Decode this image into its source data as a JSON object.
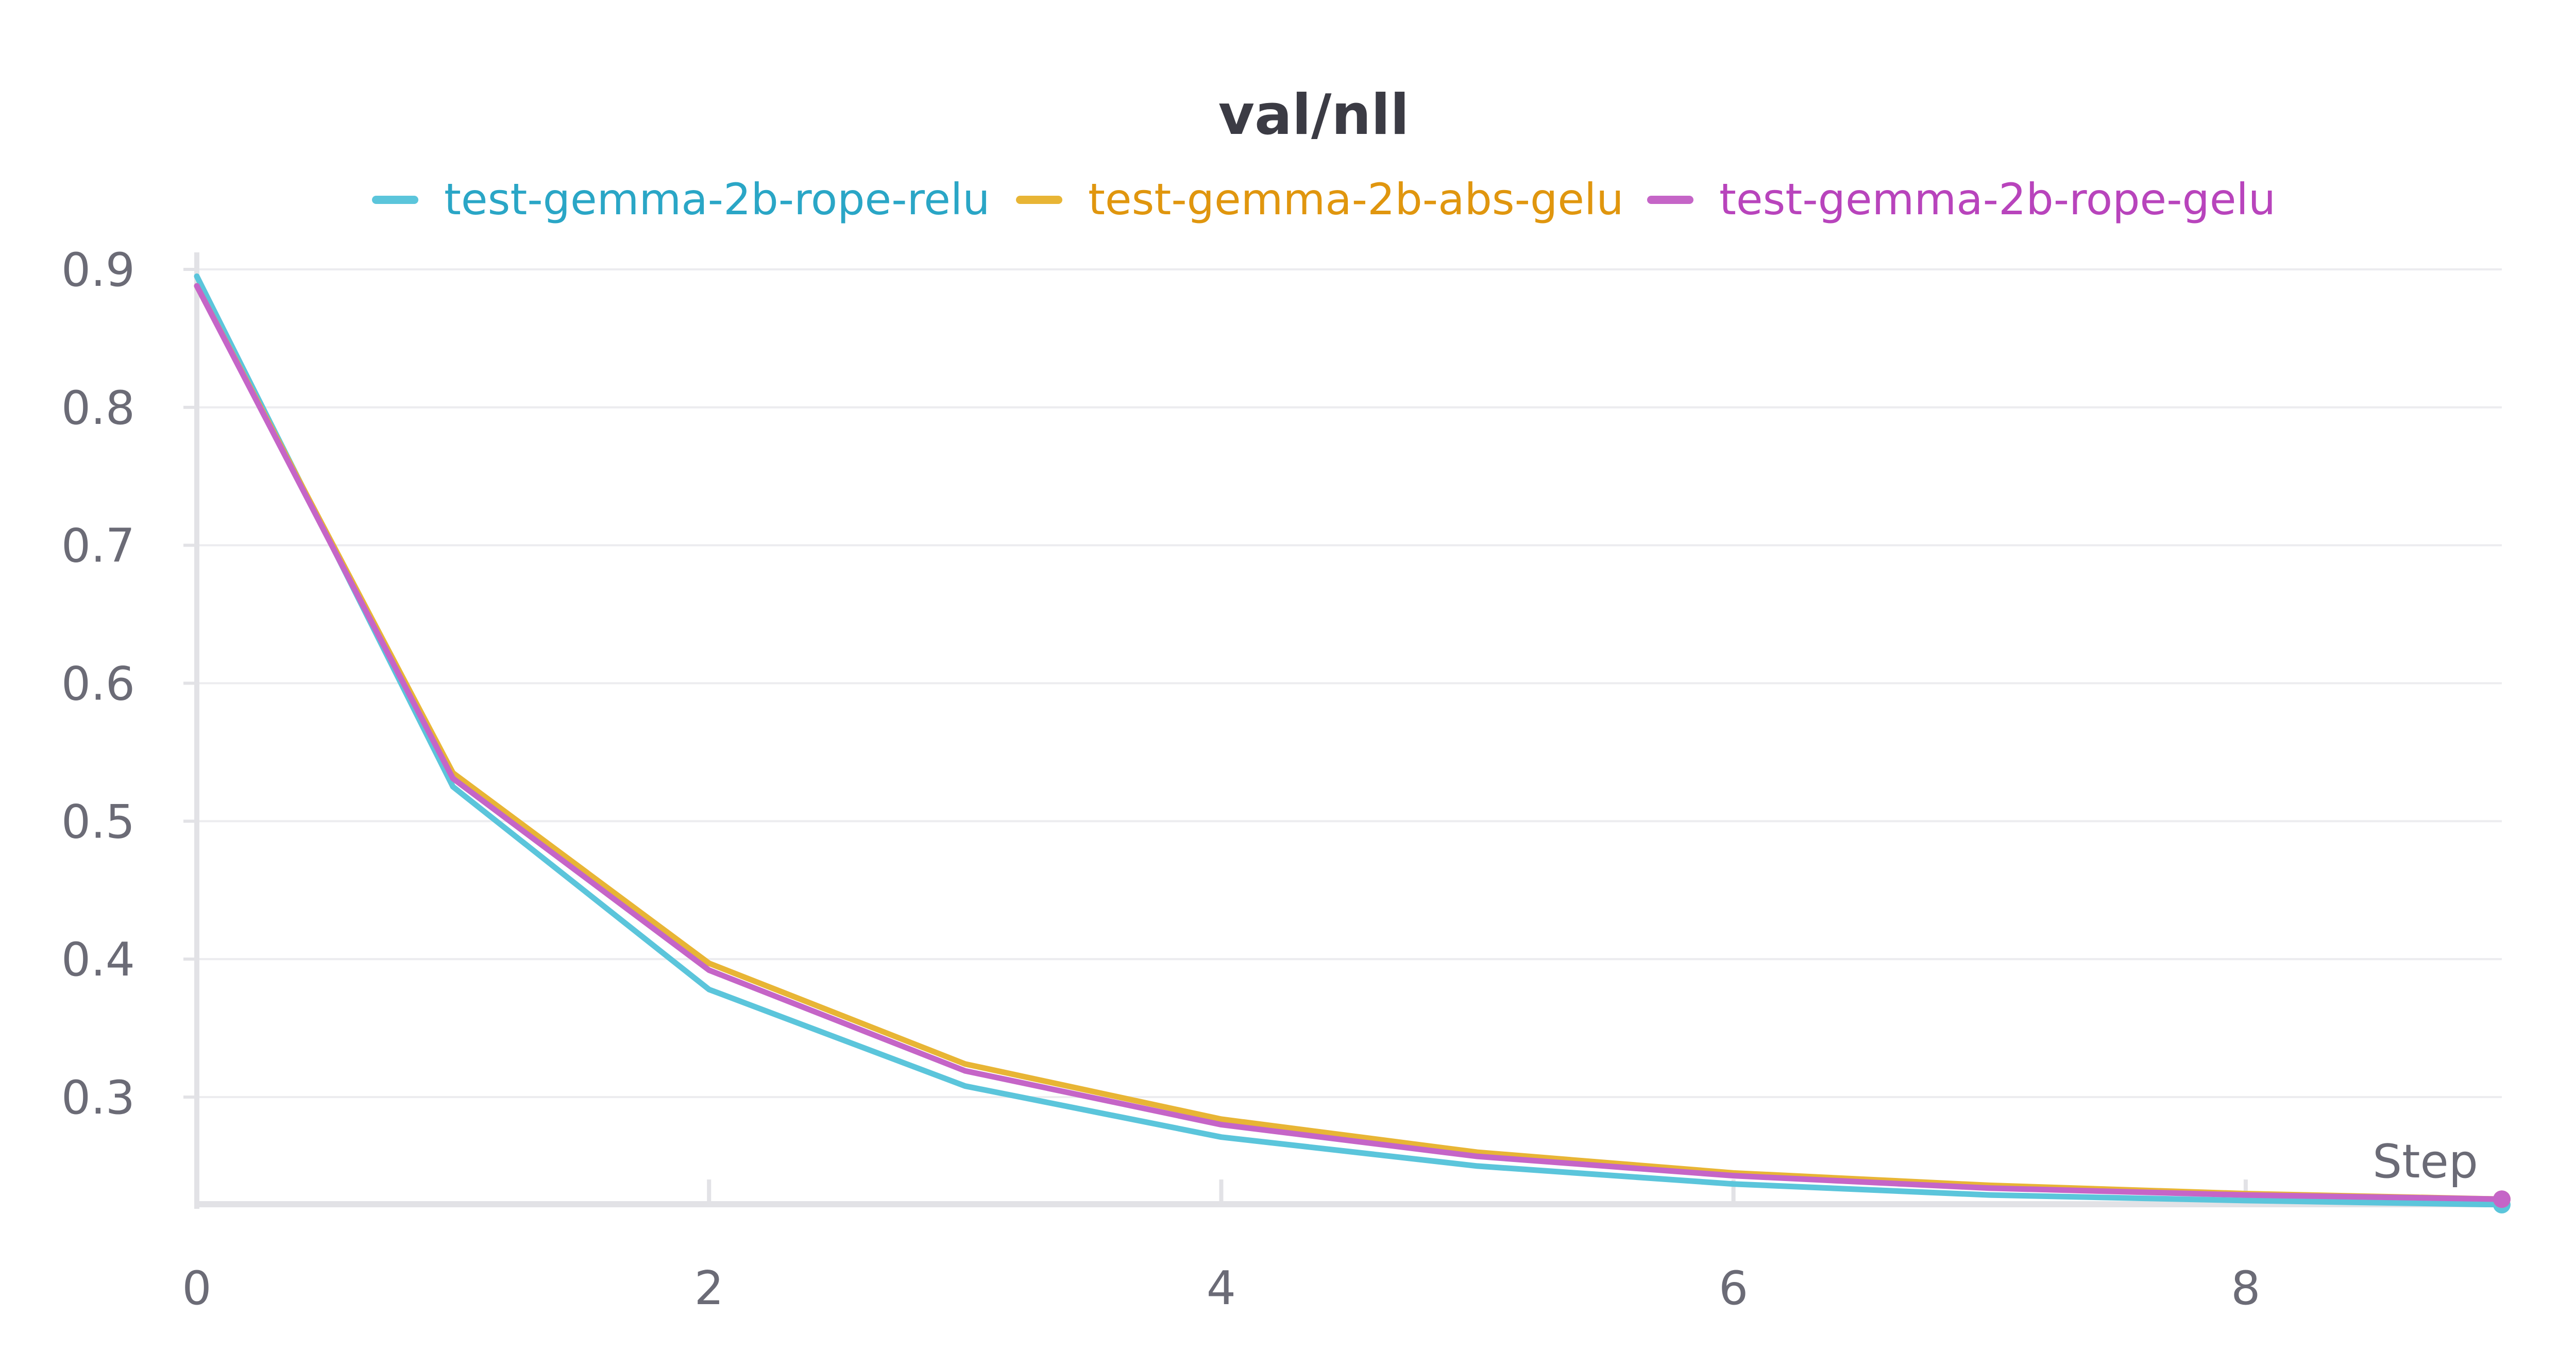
{
  "chart_data": {
    "type": "line",
    "title": "val/nll",
    "xlabel": "Step",
    "ylabel": "",
    "xlim": [
      0,
      9
    ],
    "ylim": [
      0.22,
      0.9
    ],
    "x_ticks": [
      "0",
      "2",
      "4",
      "6",
      "8"
    ],
    "y_ticks": [
      "0.3",
      "0.4",
      "0.5",
      "0.6",
      "0.7",
      "0.8",
      "0.9"
    ],
    "grid": true,
    "legend_position": "top-center",
    "x": [
      0,
      1,
      2,
      3,
      4,
      5,
      6,
      7,
      8,
      9
    ],
    "series": [
      {
        "name": "test-gemma-2b-rope-relu",
        "color": "#5bc5db",
        "values": [
          0.895,
          0.525,
          0.378,
          0.308,
          0.271,
          0.25,
          0.237,
          0.229,
          0.225,
          0.222
        ]
      },
      {
        "name": "test-gemma-2b-abs-gelu",
        "color": "#e8b535",
        "values": [
          0.888,
          0.535,
          0.397,
          0.324,
          0.284,
          0.26,
          0.245,
          0.236,
          0.23,
          0.226
        ]
      },
      {
        "name": "test-gemma-2b-rope-gelu",
        "color": "#c565c7",
        "values": [
          0.888,
          0.531,
          0.392,
          0.319,
          0.28,
          0.257,
          0.243,
          0.234,
          0.229,
          0.226
        ]
      }
    ],
    "legend_text_colors": [
      "#2aa6c6",
      "#e0960e",
      "#b844bc"
    ]
  }
}
